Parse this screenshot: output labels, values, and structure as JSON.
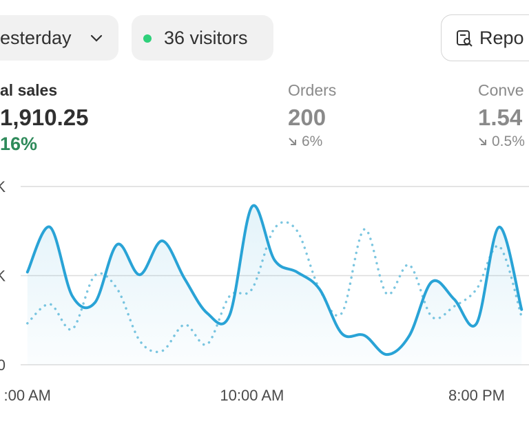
{
  "filters": {
    "date": "esterday",
    "visitors": "36 visitors",
    "reports": "Repo"
  },
  "metrics": [
    {
      "label": "al sales",
      "value": "1,910.25",
      "change": "16%"
    },
    {
      "label": "Orders",
      "value": "200",
      "change": "6%"
    },
    {
      "label": "Conve",
      "value": "1.54",
      "change": "0.5%"
    }
  ],
  "chart_data": {
    "type": "line",
    "x": [
      0,
      1,
      2,
      3,
      4,
      5,
      6,
      7,
      8,
      9,
      10,
      11,
      12,
      13,
      14,
      15,
      16,
      17,
      18,
      19,
      20,
      21,
      22
    ],
    "xlim": [
      -0.3,
      22.3
    ],
    "xticks": [
      {
        "value": 0,
        "label": ":00 AM"
      },
      {
        "value": 10,
        "label": "10:00 AM"
      },
      {
        "value": 20,
        "label": "8:00 PM"
      }
    ],
    "ylim": [
      0,
      2000
    ],
    "yticks": [
      0,
      {
        "value": 1000,
        "label": "K"
      },
      {
        "value": 2000,
        "label": "K"
      }
    ],
    "grid": true,
    "series": [
      {
        "color": "#29a3d6",
        "style": "solid",
        "area": true,
        "values": [
          1040,
          1545,
          770,
          695,
          1350,
          1010,
          1390,
          965,
          580,
          555,
          1775,
          1175,
          1040,
          850,
          350,
          330,
          115,
          325,
          930,
          735,
          465,
          1545,
          620
        ]
      },
      {
        "color": "#7cc6e0",
        "style": "dotted",
        "area": false,
        "values": [
          465,
          680,
          400,
          1000,
          850,
          270,
          155,
          450,
          230,
          770,
          850,
          1530,
          1505,
          850,
          580,
          1520,
          795,
          1120,
          540,
          655,
          850,
          1330,
          540
        ]
      }
    ]
  }
}
